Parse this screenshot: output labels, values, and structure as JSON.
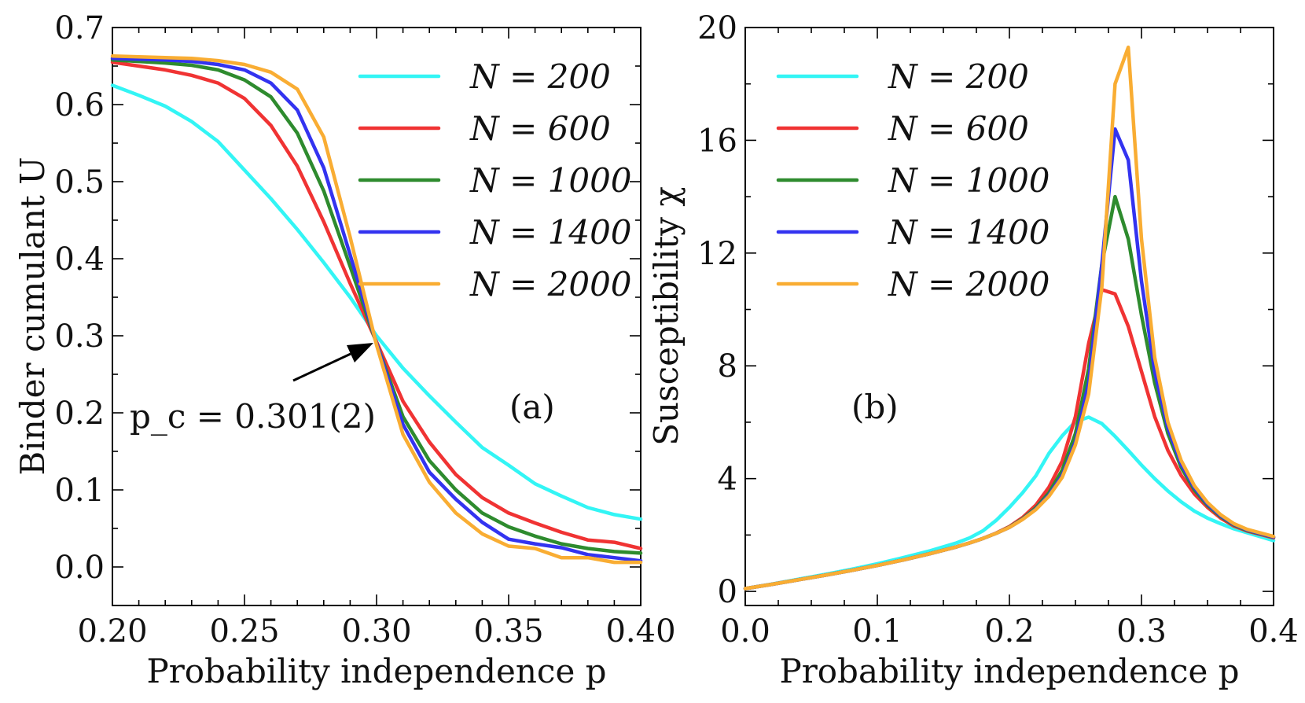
{
  "chart_data": [
    {
      "id": "a",
      "type": "line",
      "panel_label": "(a)",
      "xlabel": "Probability independence p",
      "ylabel": "Binder cumulant U",
      "xlim": [
        0.2,
        0.4
      ],
      "ylim": [
        -0.05,
        0.7
      ],
      "xticks": [
        "0.20",
        "0.25",
        "0.30",
        "0.35",
        "0.40"
      ],
      "yticks": [
        "0.0",
        "0.1",
        "0.2",
        "0.3",
        "0.4",
        "0.5",
        "0.6",
        "0.7"
      ],
      "annotation": {
        "text": "p_c = 0.301(2)",
        "point": [
          0.3,
          0.285
        ]
      },
      "x": [
        0.2,
        0.21,
        0.22,
        0.23,
        0.24,
        0.25,
        0.26,
        0.27,
        0.28,
        0.29,
        0.3,
        0.31,
        0.32,
        0.33,
        0.34,
        0.35,
        0.36,
        0.37,
        0.38,
        0.39,
        0.4
      ],
      "series": [
        {
          "name": "N = 200",
          "color": "#33f5f5",
          "values": [
            0.625,
            0.612,
            0.598,
            0.578,
            0.552,
            0.515,
            0.478,
            0.438,
            0.395,
            0.35,
            0.3,
            0.258,
            0.222,
            0.188,
            0.155,
            0.132,
            0.108,
            0.092,
            0.077,
            0.068,
            0.062
          ]
        },
        {
          "name": "N = 600",
          "color": "#f03333",
          "values": [
            0.655,
            0.65,
            0.645,
            0.638,
            0.628,
            0.608,
            0.573,
            0.52,
            0.448,
            0.368,
            0.292,
            0.215,
            0.162,
            0.12,
            0.09,
            0.07,
            0.057,
            0.045,
            0.035,
            0.032,
            0.024
          ]
        },
        {
          "name": "N = 1000",
          "color": "#2e8b2e",
          "values": [
            0.658,
            0.656,
            0.654,
            0.651,
            0.645,
            0.632,
            0.61,
            0.563,
            0.488,
            0.39,
            0.29,
            0.195,
            0.138,
            0.1,
            0.07,
            0.052,
            0.04,
            0.03,
            0.024,
            0.02,
            0.018
          ]
        },
        {
          "name": "N = 1400",
          "color": "#3333f0",
          "values": [
            0.66,
            0.659,
            0.658,
            0.656,
            0.652,
            0.645,
            0.628,
            0.593,
            0.518,
            0.405,
            0.29,
            0.185,
            0.123,
            0.088,
            0.058,
            0.036,
            0.03,
            0.025,
            0.016,
            0.012,
            0.008
          ]
        },
        {
          "name": "N = 2000",
          "color": "#f9ad33",
          "values": [
            0.663,
            0.662,
            0.661,
            0.66,
            0.657,
            0.652,
            0.642,
            0.62,
            0.558,
            0.428,
            0.288,
            0.172,
            0.11,
            0.07,
            0.043,
            0.027,
            0.024,
            0.012,
            0.012,
            0.006,
            0.006
          ]
        }
      ]
    },
    {
      "id": "b",
      "type": "line",
      "panel_label": "(b)",
      "xlabel": "Probability independence p",
      "ylabel": "Susceptibility χ",
      "xlim": [
        0.0,
        0.4
      ],
      "ylim": [
        -0.5,
        20.0
      ],
      "xticks": [
        "0.0",
        "0.1",
        "0.2",
        "0.3",
        "0.4"
      ],
      "yticks": [
        "0",
        "4",
        "8",
        "12",
        "16",
        "20"
      ],
      "x": [
        0.0,
        0.02,
        0.04,
        0.06,
        0.08,
        0.1,
        0.12,
        0.14,
        0.16,
        0.17,
        0.18,
        0.19,
        0.2,
        0.21,
        0.22,
        0.23,
        0.24,
        0.25,
        0.26,
        0.27,
        0.28,
        0.29,
        0.3,
        0.31,
        0.32,
        0.33,
        0.34,
        0.35,
        0.36,
        0.37,
        0.38,
        0.4
      ],
      "series": [
        {
          "name": "N = 200",
          "color": "#33f5f5",
          "values": [
            0.1,
            0.26,
            0.43,
            0.6,
            0.78,
            0.98,
            1.2,
            1.44,
            1.72,
            1.9,
            2.15,
            2.52,
            2.98,
            3.5,
            4.1,
            4.9,
            5.52,
            6.02,
            6.18,
            5.95,
            5.5,
            5.0,
            4.48,
            4.0,
            3.56,
            3.18,
            2.85,
            2.6,
            2.4,
            2.22,
            2.08,
            1.8
          ]
        },
        {
          "name": "N = 600",
          "color": "#f03333",
          "values": [
            0.1,
            0.25,
            0.41,
            0.57,
            0.74,
            0.92,
            1.12,
            1.34,
            1.58,
            1.72,
            1.88,
            2.07,
            2.3,
            2.62,
            3.06,
            3.7,
            4.62,
            6.2,
            8.8,
            10.7,
            10.55,
            9.4,
            7.8,
            6.2,
            5.0,
            4.12,
            3.46,
            2.98,
            2.6,
            2.32,
            2.14,
            1.9
          ]
        },
        {
          "name": "N = 1000",
          "color": "#2e8b2e",
          "values": [
            0.1,
            0.25,
            0.41,
            0.57,
            0.74,
            0.92,
            1.12,
            1.34,
            1.58,
            1.72,
            1.88,
            2.06,
            2.28,
            2.58,
            2.96,
            3.5,
            4.3,
            5.6,
            7.9,
            11.6,
            14.0,
            12.5,
            9.8,
            7.4,
            5.6,
            4.4,
            3.6,
            3.05,
            2.65,
            2.36,
            2.16,
            1.92
          ]
        },
        {
          "name": "N = 1400",
          "color": "#3333f0",
          "values": [
            0.1,
            0.25,
            0.41,
            0.57,
            0.74,
            0.92,
            1.12,
            1.34,
            1.58,
            1.72,
            1.88,
            2.06,
            2.27,
            2.56,
            2.92,
            3.42,
            4.12,
            5.3,
            7.4,
            11.6,
            16.4,
            15.3,
            11.0,
            7.8,
            5.8,
            4.52,
            3.68,
            3.1,
            2.68,
            2.38,
            2.18,
            1.93
          ]
        },
        {
          "name": "N = 2000",
          "color": "#f9ad33",
          "values": [
            0.1,
            0.25,
            0.41,
            0.57,
            0.74,
            0.92,
            1.12,
            1.34,
            1.58,
            1.72,
            1.88,
            2.06,
            2.27,
            2.55,
            2.9,
            3.38,
            4.05,
            5.2,
            7.0,
            10.8,
            18.0,
            19.3,
            12.5,
            8.3,
            6.0,
            4.65,
            3.75,
            3.15,
            2.72,
            2.4,
            2.2,
            1.95
          ]
        }
      ]
    }
  ]
}
